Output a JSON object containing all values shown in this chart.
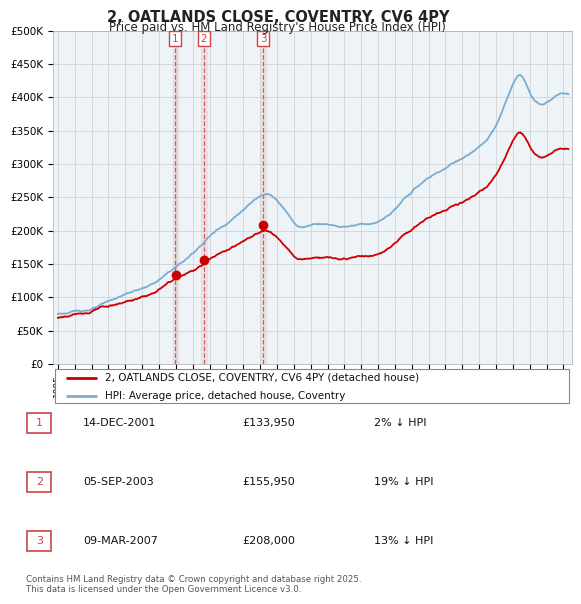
{
  "title": "2, OATLANDS CLOSE, COVENTRY, CV6 4PY",
  "subtitle": "Price paid vs. HM Land Registry's House Price Index (HPI)",
  "ylabel_ticks": [
    "£0",
    "£50K",
    "£100K",
    "£150K",
    "£200K",
    "£250K",
    "£300K",
    "£350K",
    "£400K",
    "£450K",
    "£500K"
  ],
  "ytick_vals": [
    0,
    50000,
    100000,
    150000,
    200000,
    250000,
    300000,
    350000,
    400000,
    450000,
    500000
  ],
  "ylim": [
    0,
    500000
  ],
  "xlim_start": 1994.7,
  "xlim_end": 2025.5,
  "sale_dates": [
    2001.96,
    2003.67,
    2007.19
  ],
  "sale_prices": [
    133950,
    155950,
    208000
  ],
  "sale_labels": [
    "1",
    "2",
    "3"
  ],
  "legend_line1": "2, OATLANDS CLOSE, COVENTRY, CV6 4PY (detached house)",
  "legend_line2": "HPI: Average price, detached house, Coventry",
  "table_rows": [
    [
      "1",
      "14-DEC-2001",
      "£133,950",
      "2% ↓ HPI"
    ],
    [
      "2",
      "05-SEP-2003",
      "£155,950",
      "19% ↓ HPI"
    ],
    [
      "3",
      "09-MAR-2007",
      "£208,000",
      "13% ↓ HPI"
    ]
  ],
  "footer": "Contains HM Land Registry data © Crown copyright and database right 2025.\nThis data is licensed under the Open Government Licence v3.0.",
  "line_color_red": "#cc0000",
  "line_color_blue": "#7aadcf",
  "vline_color": "#cc4444",
  "vband_color": "#e8d8d8",
  "grid_color": "#cccccc",
  "plot_bg_color": "#eef3f8",
  "background_color": "#ffffff",
  "dot_color": "#cc0000"
}
